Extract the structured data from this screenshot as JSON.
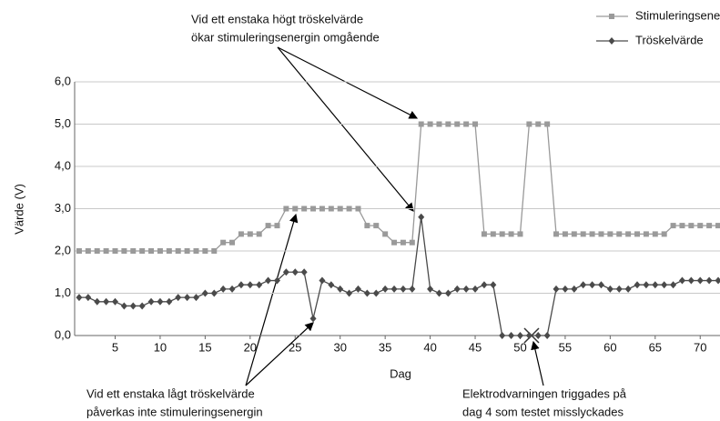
{
  "chart_data": {
    "type": "line",
    "xlabel": "Dag",
    "ylabel": "Värde (V)",
    "x": [
      1,
      2,
      3,
      4,
      5,
      6,
      7,
      8,
      9,
      10,
      11,
      12,
      13,
      14,
      15,
      16,
      17,
      18,
      19,
      20,
      21,
      22,
      23,
      24,
      25,
      26,
      27,
      28,
      29,
      30,
      31,
      32,
      33,
      34,
      35,
      36,
      37,
      38,
      39,
      40,
      41,
      42,
      43,
      44,
      45,
      46,
      47,
      48,
      49,
      50,
      51,
      52,
      53,
      54,
      55,
      56,
      57,
      58,
      59,
      60,
      61,
      62,
      63,
      64,
      65,
      66,
      67,
      68,
      69,
      70,
      71,
      72
    ],
    "series": [
      {
        "name": "Stimuleringsenergi",
        "color": "#9a9a9a",
        "marker": "square",
        "values": [
          2.0,
          2.0,
          2.0,
          2.0,
          2.0,
          2.0,
          2.0,
          2.0,
          2.0,
          2.0,
          2.0,
          2.0,
          2.0,
          2.0,
          2.0,
          2.0,
          2.2,
          2.2,
          2.4,
          2.4,
          2.4,
          2.6,
          2.6,
          3.0,
          3.0,
          3.0,
          3.0,
          3.0,
          3.0,
          3.0,
          3.0,
          3.0,
          2.6,
          2.6,
          2.4,
          2.2,
          2.2,
          2.2,
          5.0,
          5.0,
          5.0,
          5.0,
          5.0,
          5.0,
          5.0,
          2.4,
          2.4,
          2.4,
          2.4,
          2.4,
          5.0,
          5.0,
          5.0,
          2.4,
          2.4,
          2.4,
          2.4,
          2.4,
          2.4,
          2.4,
          2.4,
          2.4,
          2.4,
          2.4,
          2.4,
          2.4,
          2.6,
          2.6,
          2.6,
          2.6,
          2.6,
          2.6
        ]
      },
      {
        "name": "Tröskelvärde",
        "color": "#4a4a4a",
        "marker": "diamond",
        "values": [
          0.9,
          0.9,
          0.8,
          0.8,
          0.8,
          0.7,
          0.7,
          0.7,
          0.8,
          0.8,
          0.8,
          0.9,
          0.9,
          0.9,
          1.0,
          1.0,
          1.1,
          1.1,
          1.2,
          1.2,
          1.2,
          1.3,
          1.3,
          1.5,
          1.5,
          1.5,
          0.4,
          1.3,
          1.2,
          1.1,
          1.0,
          1.1,
          1.0,
          1.0,
          1.1,
          1.1,
          1.1,
          1.1,
          2.8,
          1.1,
          1.0,
          1.0,
          1.1,
          1.1,
          1.1,
          1.2,
          1.2,
          0,
          0,
          0,
          0,
          0,
          0,
          1.1,
          1.1,
          1.1,
          1.2,
          1.2,
          1.2,
          1.1,
          1.1,
          1.1,
          1.2,
          1.2,
          1.2,
          1.2,
          1.2,
          1.3,
          1.3,
          1.3,
          1.3,
          1.3
        ]
      }
    ],
    "xlim": [
      0.5,
      72.2
    ],
    "xticks": [
      5,
      10,
      15,
      20,
      25,
      30,
      35,
      40,
      45,
      50,
      55,
      60,
      65,
      70
    ],
    "ylim": [
      0,
      6
    ],
    "yticks": [
      {
        "value": 0,
        "label": "0,0"
      },
      {
        "value": 1,
        "label": "1,0"
      },
      {
        "value": 2,
        "label": "2,0"
      },
      {
        "value": 3,
        "label": "3,0"
      },
      {
        "value": 4,
        "label": "4,0"
      },
      {
        "value": 5,
        "label": "5,0"
      },
      {
        "value": 6,
        "label": "6,0"
      }
    ],
    "grid": true,
    "legend": "top-right",
    "annotations": [
      {
        "lines": [
          "Vid ett enstaka högt tröskelvärde",
          "ökar stimuleringsenergin omgående"
        ]
      },
      {
        "lines": [
          "Vid ett enstaka lågt tröskelvärde",
          "påverkas inte stimuleringsenergin"
        ]
      },
      {
        "lines": [
          "Elektrodvarningen triggades på",
          "dag 4 som testet misslyckades"
        ]
      }
    ]
  }
}
